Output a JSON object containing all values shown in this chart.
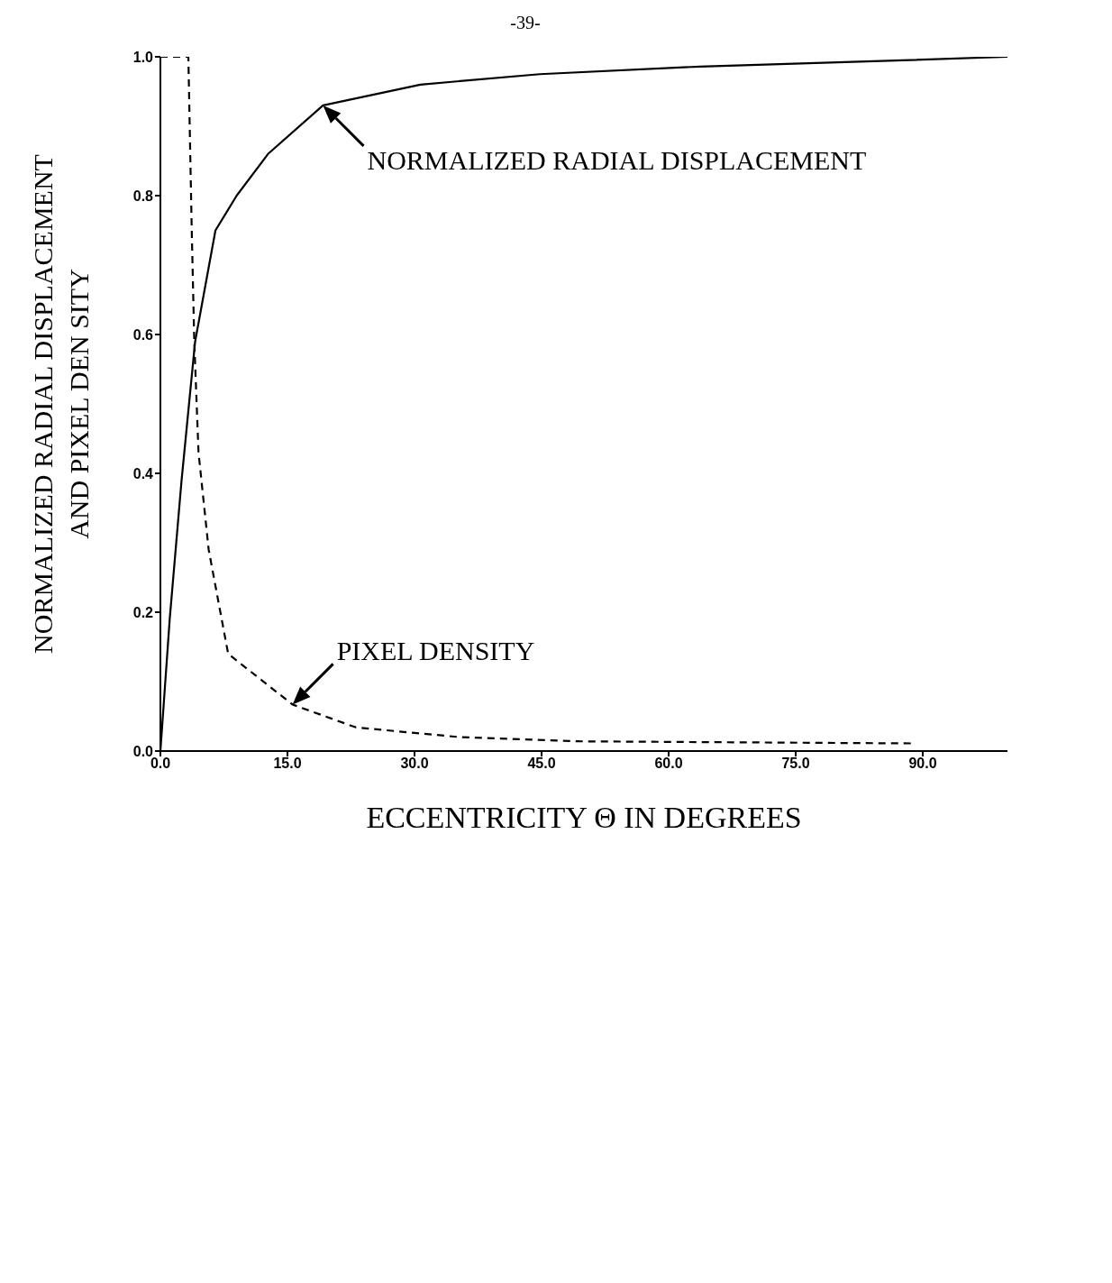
{
  "chart_data": {
    "type": "line",
    "xlabel": "ECCENTRICITY Θ IN DEGREES",
    "ylabel": "NORMALIZED RADIAL DISPLACEMENT\nAND PIXEL DEN SITY",
    "xlim": [
      0,
      100
    ],
    "xticks": [
      {
        "value": 0,
        "label": "0.0"
      },
      {
        "value": 15,
        "label": "15.0"
      },
      {
        "value": 30,
        "label": "30.0"
      },
      {
        "value": 45,
        "label": "45.0"
      },
      {
        "value": 60,
        "label": "60.0"
      },
      {
        "value": 75,
        "label": "75.0"
      },
      {
        "value": 90,
        "label": "90.0"
      }
    ],
    "ylim": [
      0,
      1
    ],
    "yticks": [
      {
        "value": 0,
        "label": "0.0"
      },
      {
        "value": 0.2,
        "label": "0.2"
      },
      {
        "value": 0.4,
        "label": "0.4"
      },
      {
        "value": 0.6,
        "label": "0.6"
      },
      {
        "value": 0.8,
        "label": "0.8"
      },
      {
        "value": 1,
        "label": "1.0"
      }
    ],
    "series": [
      {
        "color": "#000000",
        "line_style": "solid",
        "x": [
          0,
          1.1,
          2.5,
          4.1,
          6.5,
          9,
          12.7,
          19.2,
          30.7,
          44.8,
          63.7,
          82.5,
          100
        ],
        "values": [
          0,
          0.19,
          0.39,
          0.59,
          0.75,
          0.8,
          0.86,
          0.93,
          0.96,
          0.975,
          0.986,
          0.993,
          1.0
        ]
      },
      {
        "color": "#000000",
        "line_style": "dashed",
        "x": [
          0,
          3.3,
          3.7,
          4.0,
          4.5,
          5.7,
          8.0,
          15.6,
          23.1,
          35.4,
          49.5,
          88.9
        ],
        "values": [
          1.0,
          1.0,
          0.75,
          0.59,
          0.43,
          0.29,
          0.14,
          0.067,
          0.034,
          0.02,
          0.014,
          0.011
        ]
      }
    ],
    "marker": "none",
    "grid": false,
    "annotations": [
      "-39-",
      {
        "text": "NORMALIZED RADIAL DISPLACEMENT",
        "x": 19.2,
        "y": 0.93
      },
      {
        "text": "PIXEL DENSITY",
        "x": 15.6,
        "y": 0.067
      }
    ]
  }
}
